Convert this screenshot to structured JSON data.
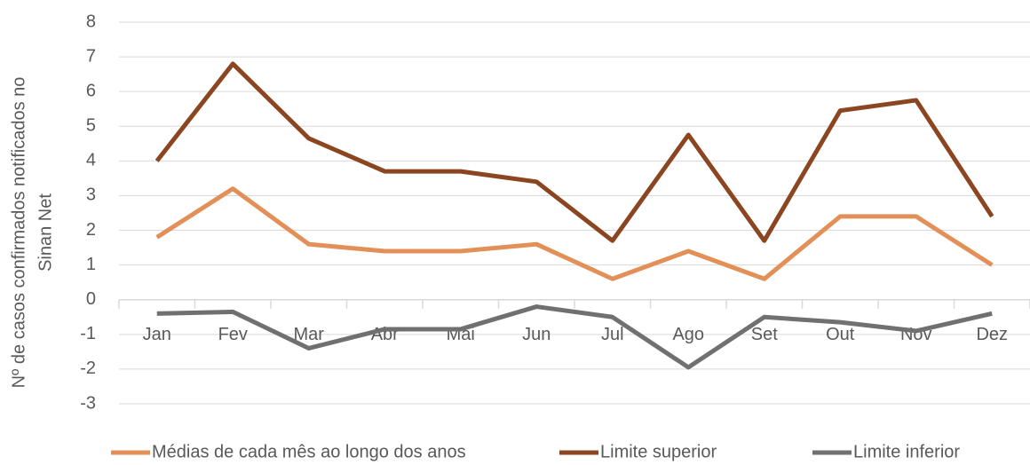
{
  "chart_data": {
    "type": "line",
    "ylabel": [
      "Nº de casos confirmados notificados no",
      "Sinan Net"
    ],
    "categories": [
      "Jan",
      "Fev",
      "Mar",
      "Abr",
      "Mai",
      "Jun",
      "Jul",
      "Ago",
      "Set",
      "Out",
      "Nov",
      "Dez"
    ],
    "series": [
      {
        "name": "Médias de cada mês ao longo dos anos",
        "color": "#e39058",
        "values": [
          1.8,
          3.2,
          1.6,
          1.4,
          1.4,
          1.6,
          0.6,
          1.4,
          0.6,
          2.4,
          2.4,
          1.0
        ]
      },
      {
        "name": "Limite superior",
        "color": "#8b4621",
        "values": [
          4.0,
          6.8,
          4.65,
          3.7,
          3.7,
          3.4,
          1.7,
          4.75,
          1.7,
          5.45,
          5.75,
          2.4
        ]
      },
      {
        "name": "Limite inferior",
        "color": "#707070",
        "values": [
          -0.4,
          -0.35,
          -1.4,
          -0.85,
          -0.85,
          -0.2,
          -0.5,
          -1.95,
          -0.5,
          -0.65,
          -0.9,
          -0.4
        ]
      }
    ],
    "ylim": [
      -3,
      8
    ],
    "yticks": [
      -3,
      -2,
      -1,
      0,
      1,
      2,
      3,
      4,
      5,
      6,
      7,
      8
    ],
    "grid": true,
    "legend": "bottom"
  }
}
